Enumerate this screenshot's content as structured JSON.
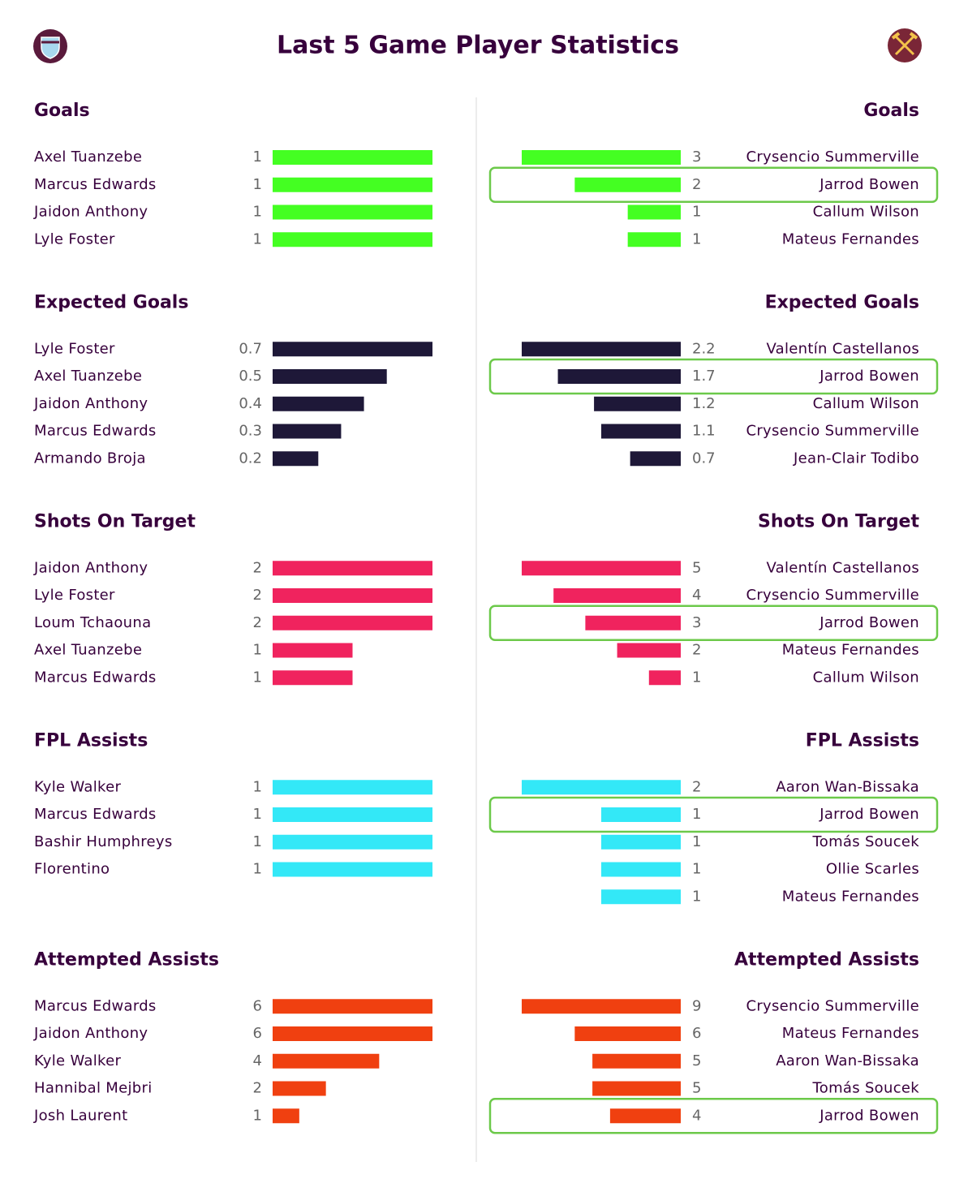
{
  "title": "Last 5 Game Player Statistics",
  "left": {
    "sections": [
      {
        "title": "Goals",
        "color": "#44ff22",
        "rows": [
          {
            "name": "Axel Tuanzebe",
            "value": 1
          },
          {
            "name": "Marcus Edwards",
            "value": 1
          },
          {
            "name": "Jaidon Anthony",
            "value": 1
          },
          {
            "name": "Lyle Foster",
            "value": 1
          }
        ]
      },
      {
        "title": "Expected Goals",
        "color": "#1e1838",
        "rows": [
          {
            "name": "Lyle Foster",
            "value": 0.7
          },
          {
            "name": "Axel Tuanzebe",
            "value": 0.5
          },
          {
            "name": "Jaidon Anthony",
            "value": 0.4
          },
          {
            "name": "Marcus Edwards",
            "value": 0.3
          },
          {
            "name": "Armando Broja",
            "value": 0.2
          }
        ]
      },
      {
        "title": "Shots On Target",
        "color": "#f0235e",
        "rows": [
          {
            "name": "Jaidon Anthony",
            "value": 2
          },
          {
            "name": "Lyle Foster",
            "value": 2
          },
          {
            "name": "Loum Tchaouna",
            "value": 2
          },
          {
            "name": "Axel Tuanzebe",
            "value": 1
          },
          {
            "name": "Marcus Edwards",
            "value": 1
          }
        ]
      },
      {
        "title": "FPL Assists",
        "color": "#33e8f7",
        "rows": [
          {
            "name": "Kyle Walker",
            "value": 1
          },
          {
            "name": "Marcus Edwards",
            "value": 1
          },
          {
            "name": "Bashir Humphreys",
            "value": 1
          },
          {
            "name": "Florentino",
            "value": 1
          }
        ]
      },
      {
        "title": "Attempted Assists",
        "color": "#f04010",
        "rows": [
          {
            "name": "Marcus Edwards",
            "value": 6
          },
          {
            "name": "Jaidon Anthony",
            "value": 6
          },
          {
            "name": "Kyle Walker",
            "value": 4
          },
          {
            "name": "Hannibal Mejbri",
            "value": 2
          },
          {
            "name": "Josh Laurent",
            "value": 1
          }
        ]
      }
    ]
  },
  "right": {
    "sections": [
      {
        "title": "Goals",
        "color": "#44ff22",
        "rows": [
          {
            "name": "Crysencio Summerville",
            "value": 3
          },
          {
            "name": "Jarrod Bowen",
            "value": 2,
            "highlight": true
          },
          {
            "name": "Callum Wilson",
            "value": 1
          },
          {
            "name": "Mateus Fernandes",
            "value": 1
          }
        ]
      },
      {
        "title": "Expected Goals",
        "color": "#1e1838",
        "rows": [
          {
            "name": "Valentín Castellanos",
            "value": 2.2
          },
          {
            "name": "Jarrod Bowen",
            "value": 1.7,
            "highlight": true
          },
          {
            "name": "Callum Wilson",
            "value": 1.2
          },
          {
            "name": "Crysencio Summerville",
            "value": 1.1
          },
          {
            "name": "Jean-Clair Todibo",
            "value": 0.7
          }
        ]
      },
      {
        "title": "Shots On Target",
        "color": "#f0235e",
        "rows": [
          {
            "name": "Valentín Castellanos",
            "value": 5
          },
          {
            "name": "Crysencio Summerville",
            "value": 4
          },
          {
            "name": "Jarrod Bowen",
            "value": 3,
            "highlight": true
          },
          {
            "name": "Mateus Fernandes",
            "value": 2
          },
          {
            "name": "Callum Wilson",
            "value": 1
          }
        ]
      },
      {
        "title": "FPL Assists",
        "color": "#33e8f7",
        "rows": [
          {
            "name": "Aaron Wan-Bissaka",
            "value": 2
          },
          {
            "name": "Jarrod Bowen",
            "value": 1,
            "highlight": true
          },
          {
            "name": "Tomás Soucek",
            "value": 1
          },
          {
            "name": "Ollie Scarles",
            "value": 1
          },
          {
            "name": "Mateus Fernandes",
            "value": 1
          }
        ]
      },
      {
        "title": "Attempted Assists",
        "color": "#f04010",
        "rows": [
          {
            "name": "Crysencio Summerville",
            "value": 9
          },
          {
            "name": "Mateus Fernandes",
            "value": 6
          },
          {
            "name": "Aaron Wan-Bissaka",
            "value": 5
          },
          {
            "name": "Tomás Soucek",
            "value": 5
          },
          {
            "name": "Jarrod Bowen",
            "value": 4,
            "highlight": true
          }
        ]
      }
    ]
  }
}
